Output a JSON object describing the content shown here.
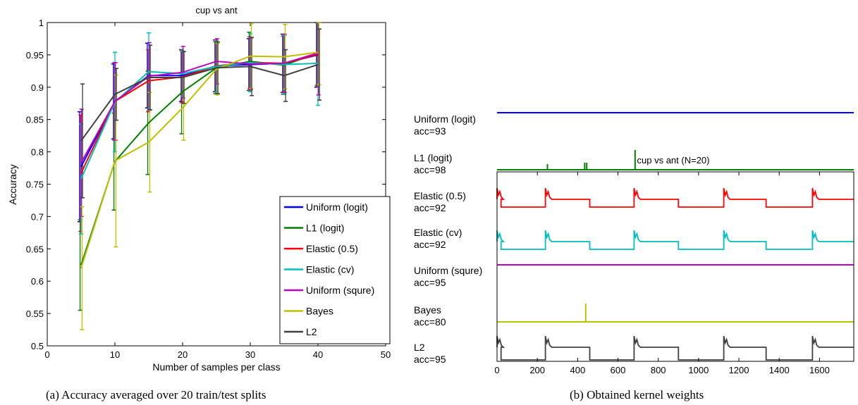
{
  "captions": {
    "left": "(a)  Accuracy averaged over 20 train/test splits",
    "right": "(b)  Obtained kernel weights"
  },
  "chart_data": [
    {
      "type": "line",
      "title": "cup vs ant",
      "xlabel": "Number of samples per class",
      "ylabel": "Accuracy",
      "xlim": [
        0,
        50
      ],
      "ylim": [
        0.5,
        1
      ],
      "xticks": [
        0,
        10,
        20,
        30,
        40,
        50
      ],
      "yticks": [
        0.5,
        0.55,
        0.6,
        0.65,
        0.7,
        0.75,
        0.8,
        0.85,
        0.9,
        0.95,
        1
      ],
      "x": [
        5,
        10,
        15,
        20,
        25,
        30,
        35,
        40
      ],
      "legend_position": "lower-right",
      "error_bars": true,
      "series": [
        {
          "name": "Uniform (logit)",
          "color": "#0000ff",
          "values": [
            0.777,
            0.878,
            0.918,
            0.918,
            0.933,
            0.935,
            0.937,
            0.95
          ],
          "errors": [
            0.085,
            0.058,
            0.05,
            0.04,
            0.04,
            0.04,
            0.045,
            0.05
          ]
        },
        {
          "name": "L1 (logit)",
          "color": "#008000",
          "values": [
            0.625,
            0.785,
            0.845,
            0.893,
            0.93,
            0.94,
            0.934,
            0.953
          ],
          "errors": [
            0.07,
            0.075,
            0.08,
            0.065,
            0.04,
            0.045,
            0.045,
            0.05
          ]
        },
        {
          "name": "Elastic (0.5)",
          "color": "#ff0000",
          "values": [
            0.767,
            0.878,
            0.91,
            0.916,
            0.933,
            0.938,
            0.937,
            0.951
          ],
          "errors": [
            0.09,
            0.06,
            0.048,
            0.04,
            0.04,
            0.04,
            0.045,
            0.05
          ]
        },
        {
          "name": "Elastic (cv)",
          "color": "#00bfbf",
          "values": [
            0.758,
            0.877,
            0.924,
            0.921,
            0.932,
            0.938,
            0.935,
            0.937
          ],
          "errors": [
            0.085,
            0.077,
            0.06,
            0.035,
            0.04,
            0.045,
            0.045,
            0.065
          ]
        },
        {
          "name": "Uniform (squre)",
          "color": "#bf00bf",
          "values": [
            0.783,
            0.878,
            0.917,
            0.923,
            0.94,
            0.936,
            0.937,
            0.953
          ],
          "errors": [
            0.083,
            0.06,
            0.052,
            0.04,
            0.035,
            0.04,
            0.045,
            0.065
          ]
        },
        {
          "name": "Bayes",
          "color": "#bfbf00",
          "values": [
            0.62,
            0.786,
            0.815,
            0.868,
            0.928,
            0.948,
            0.947,
            0.954
          ],
          "errors": [
            0.095,
            0.133,
            0.077,
            0.05,
            0.04,
            0.05,
            0.05,
            0.05
          ]
        },
        {
          "name": "L2",
          "color": "#404040",
          "values": [
            0.817,
            0.889,
            0.915,
            0.915,
            0.93,
            0.932,
            0.918,
            0.935
          ],
          "errors": [
            0.088,
            0.04,
            0.05,
            0.04,
            0.04,
            0.045,
            0.04,
            0.055
          ]
        }
      ]
    },
    {
      "type": "line",
      "title": "cup vs ant (N=20)",
      "xlim": [
        0,
        1770
      ],
      "xticks": [
        0,
        200,
        400,
        600,
        800,
        1000,
        1200,
        1400,
        1600
      ],
      "legend_position": "left",
      "row_labels": [
        {
          "name": "Uniform (logit)",
          "acc": "acc=93",
          "color": "#0000ff"
        },
        {
          "name": "L1 (logit)",
          "acc": "acc=98",
          "color": "#008000"
        },
        {
          "name": "Elastic (0.5)",
          "acc": "acc=92",
          "color": "#ff0000"
        },
        {
          "name": "Elastic (cv)",
          "acc": "acc=92",
          "color": "#00bfbf"
        },
        {
          "name": "Uniform (squre)",
          "acc": "acc=95",
          "color": "#bf00bf"
        },
        {
          "name": "Bayes",
          "acc": "acc=80",
          "color": "#bfbf00"
        },
        {
          "name": "L2",
          "acc": "acc=95",
          "color": "#404040"
        }
      ],
      "segment_breaks": [
        0,
        20,
        240,
        460,
        680,
        900,
        1125,
        1335,
        1565,
        1770
      ],
      "elevated_segments": [
        0,
        2,
        4,
        6,
        8
      ],
      "spike_positions_L1": [
        250,
        435,
        445,
        685
      ],
      "spike_position_Bayes": 440
    }
  ]
}
